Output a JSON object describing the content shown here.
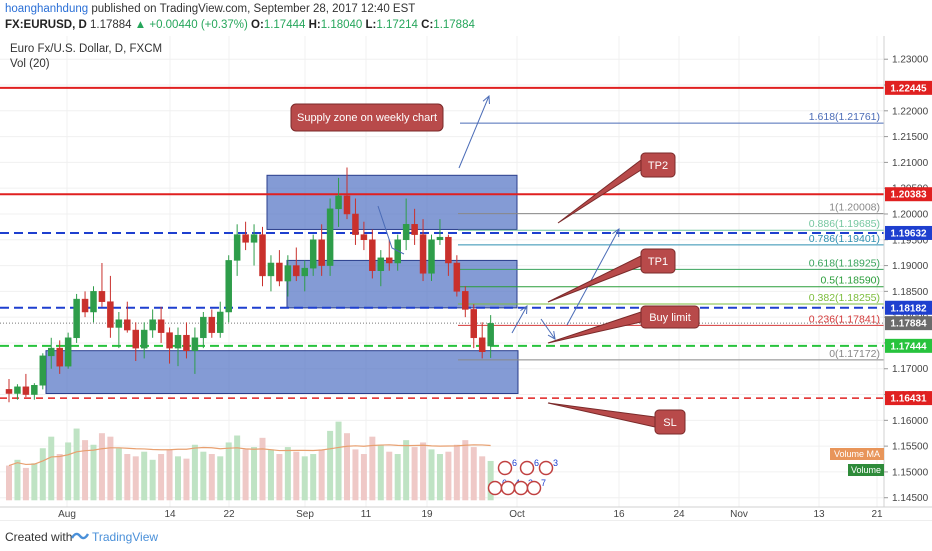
{
  "header": {
    "author": "hoanghanhdung",
    "published_text": "published on TradingView.com, September 28, 2017 12:40 EST",
    "symbol": "FX:EURUSD, D",
    "last": "1.17884",
    "change": "+0.00440 (+0.37%)",
    "o_label": "O:",
    "o_value": "1.17444",
    "h_label": "H:",
    "h_value": "1.18040",
    "l_label": "L:",
    "l_value": "1.17214",
    "c_label": "C:",
    "c_value": "1.17884"
  },
  "legend": {
    "title": "Euro Fx/U.S. Dollar, D, FXCM",
    "indicator": "Vol (20)"
  },
  "footer": {
    "created_with": "Created with",
    "brand": "TradingView"
  },
  "colors": {
    "up": "#2e9d4a",
    "down": "#c9302c",
    "zone_fill": "#5b79c7",
    "red_line": "#e02020",
    "blue_dash": "#1e3fcf",
    "green_dash": "#27c33d",
    "callout": "#b84a4a"
  },
  "price_axis": {
    "labels": [
      "1.23000",
      "1.22500",
      "1.22000",
      "1.21500",
      "1.21000",
      "1.20500",
      "1.20000",
      "1.19500",
      "1.19000",
      "1.18500",
      "1.18000",
      "1.17500",
      "1.17000",
      "1.16500",
      "1.16000",
      "1.15500",
      "1.15000",
      "1.14500"
    ]
  },
  "price_tags": [
    {
      "text": "1.22445",
      "price": 1.22445,
      "color": "#e02020"
    },
    {
      "text": "1.20383",
      "price": 1.20383,
      "color": "#e02020"
    },
    {
      "text": "1.19632",
      "price": 1.19632,
      "color": "#1e3fcf"
    },
    {
      "text": "1.18182",
      "price": 1.18182,
      "color": "#1e3fcf"
    },
    {
      "text": "1.17884",
      "price": 1.17884,
      "color": "#6b6b6b"
    },
    {
      "text": "1.17444",
      "price": 1.17444,
      "color": "#27c33d"
    },
    {
      "text": "1.16431",
      "price": 1.16431,
      "color": "#e02020"
    }
  ],
  "time_axis": {
    "labels": [
      "Aug",
      "14",
      "22",
      "Sep",
      "11",
      "19",
      "Oct",
      "16",
      "24",
      "Nov",
      "13",
      "21"
    ]
  },
  "fib_levels": [
    {
      "text": "1.618(1.21761)",
      "price": 1.21761,
      "color": "#4b6cb7"
    },
    {
      "text": "1(1.20008)",
      "price": 1.20008,
      "color": "#888888"
    },
    {
      "text": "0.886(1.19685)",
      "price": 1.19685,
      "color": "#76c7a0"
    },
    {
      "text": "0.786(1.19401)",
      "price": 1.19401,
      "color": "#2e8fb0"
    },
    {
      "text": "0.618(1.18925)",
      "price": 1.18925,
      "color": "#3aa35c"
    },
    {
      "text": "0.5(1.18590)",
      "price": 1.1859,
      "color": "#2a9d3a"
    },
    {
      "text": "0.382(1.18255)",
      "price": 1.18255,
      "color": "#7cbd3c"
    },
    {
      "text": "0.236(1.17841)",
      "price": 1.17841,
      "color": "#d43a3a"
    },
    {
      "text": "0(1.17172)",
      "price": 1.17172,
      "color": "#888888"
    }
  ],
  "annotations": {
    "supply_zone": "Supply zone on weekly chart",
    "tp2": "TP2",
    "tp1": "TP1",
    "buy_limit": "Buy limit",
    "sl": "SL"
  },
  "volume_labels": {
    "ma": "Volume MA",
    "vol": "Volume"
  },
  "chart_data": {
    "type": "candlestick",
    "title": "Euro Fx/U.S. Dollar, D, FXCM",
    "ylim": [
      1.1432,
      1.2345
    ],
    "candles": [
      [
        1.166,
        1.168,
        1.1635,
        1.1652
      ],
      [
        1.1652,
        1.167,
        1.164,
        1.1665
      ],
      [
        1.1665,
        1.169,
        1.1645,
        1.165
      ],
      [
        1.165,
        1.1672,
        1.164,
        1.1668
      ],
      [
        1.1668,
        1.173,
        1.166,
        1.1725
      ],
      [
        1.1725,
        1.176,
        1.17,
        1.174
      ],
      [
        1.174,
        1.1755,
        1.169,
        1.1705
      ],
      [
        1.1705,
        1.177,
        1.17,
        1.176
      ],
      [
        1.176,
        1.1845,
        1.175,
        1.1835
      ],
      [
        1.1835,
        1.185,
        1.18,
        1.181
      ],
      [
        1.181,
        1.186,
        1.179,
        1.185
      ],
      [
        1.185,
        1.1905,
        1.182,
        1.183
      ],
      [
        1.183,
        1.188,
        1.176,
        1.178
      ],
      [
        1.178,
        1.181,
        1.174,
        1.1795
      ],
      [
        1.1795,
        1.183,
        1.177,
        1.1775
      ],
      [
        1.1775,
        1.179,
        1.1715,
        1.174
      ],
      [
        1.174,
        1.179,
        1.172,
        1.1775
      ],
      [
        1.1775,
        1.1815,
        1.176,
        1.1795
      ],
      [
        1.1795,
        1.182,
        1.175,
        1.177
      ],
      [
        1.177,
        1.178,
        1.171,
        1.174
      ],
      [
        1.174,
        1.178,
        1.1705,
        1.1765
      ],
      [
        1.1765,
        1.179,
        1.172,
        1.1735
      ],
      [
        1.1735,
        1.178,
        1.169,
        1.176
      ],
      [
        1.176,
        1.181,
        1.174,
        1.18
      ],
      [
        1.18,
        1.1815,
        1.176,
        1.177
      ],
      [
        1.177,
        1.183,
        1.176,
        1.181
      ],
      [
        1.181,
        1.192,
        1.179,
        1.191
      ],
      [
        1.191,
        1.198,
        1.188,
        1.196
      ],
      [
        1.196,
        1.1985,
        1.193,
        1.1945
      ],
      [
        1.1945,
        1.198,
        1.19,
        1.196
      ],
      [
        1.196,
        1.1975,
        1.186,
        1.188
      ],
      [
        1.188,
        1.192,
        1.185,
        1.1905
      ],
      [
        1.1905,
        1.193,
        1.186,
        1.187
      ],
      [
        1.187,
        1.192,
        1.184,
        1.19
      ],
      [
        1.19,
        1.1935,
        1.187,
        1.188
      ],
      [
        1.188,
        1.191,
        1.185,
        1.1895
      ],
      [
        1.1895,
        1.196,
        1.188,
        1.195
      ],
      [
        1.195,
        1.198,
        1.188,
        1.19
      ],
      [
        1.19,
        1.203,
        1.188,
        1.201
      ],
      [
        1.201,
        1.207,
        1.1975,
        1.2035
      ],
      [
        1.2035,
        1.209,
        1.199,
        1.2
      ],
      [
        1.2,
        1.203,
        1.194,
        1.196
      ],
      [
        1.196,
        1.1985,
        1.193,
        1.195
      ],
      [
        1.195,
        1.197,
        1.1875,
        1.189
      ],
      [
        1.189,
        1.193,
        1.186,
        1.1915
      ],
      [
        1.1915,
        1.195,
        1.189,
        1.1905
      ],
      [
        1.1905,
        1.196,
        1.189,
        1.195
      ],
      [
        1.195,
        1.203,
        1.193,
        1.198
      ],
      [
        1.198,
        1.201,
        1.194,
        1.196
      ],
      [
        1.196,
        1.199,
        1.187,
        1.1885
      ],
      [
        1.1885,
        1.196,
        1.187,
        1.195
      ],
      [
        1.195,
        1.199,
        1.194,
        1.1955
      ],
      [
        1.1955,
        1.196,
        1.188,
        1.1905
      ],
      [
        1.1905,
        1.192,
        1.184,
        1.185
      ],
      [
        1.185,
        1.186,
        1.18,
        1.1815
      ],
      [
        1.1815,
        1.1825,
        1.174,
        1.176
      ],
      [
        1.176,
        1.179,
        1.172,
        1.1733
      ],
      [
        1.1744,
        1.1804,
        1.1721,
        1.1788
      ]
    ],
    "volume": [
      0.3,
      0.35,
      0.28,
      0.32,
      0.45,
      0.55,
      0.4,
      0.5,
      0.62,
      0.52,
      0.48,
      0.58,
      0.55,
      0.45,
      0.4,
      0.38,
      0.42,
      0.35,
      0.4,
      0.44,
      0.38,
      0.36,
      0.48,
      0.42,
      0.4,
      0.38,
      0.5,
      0.56,
      0.44,
      0.46,
      0.54,
      0.44,
      0.4,
      0.46,
      0.42,
      0.38,
      0.4,
      0.44,
      0.6,
      0.68,
      0.58,
      0.44,
      0.4,
      0.55,
      0.48,
      0.42,
      0.4,
      0.52,
      0.46,
      0.5,
      0.44,
      0.4,
      0.42,
      0.48,
      0.52,
      0.46,
      0.38,
      0.34
    ]
  }
}
